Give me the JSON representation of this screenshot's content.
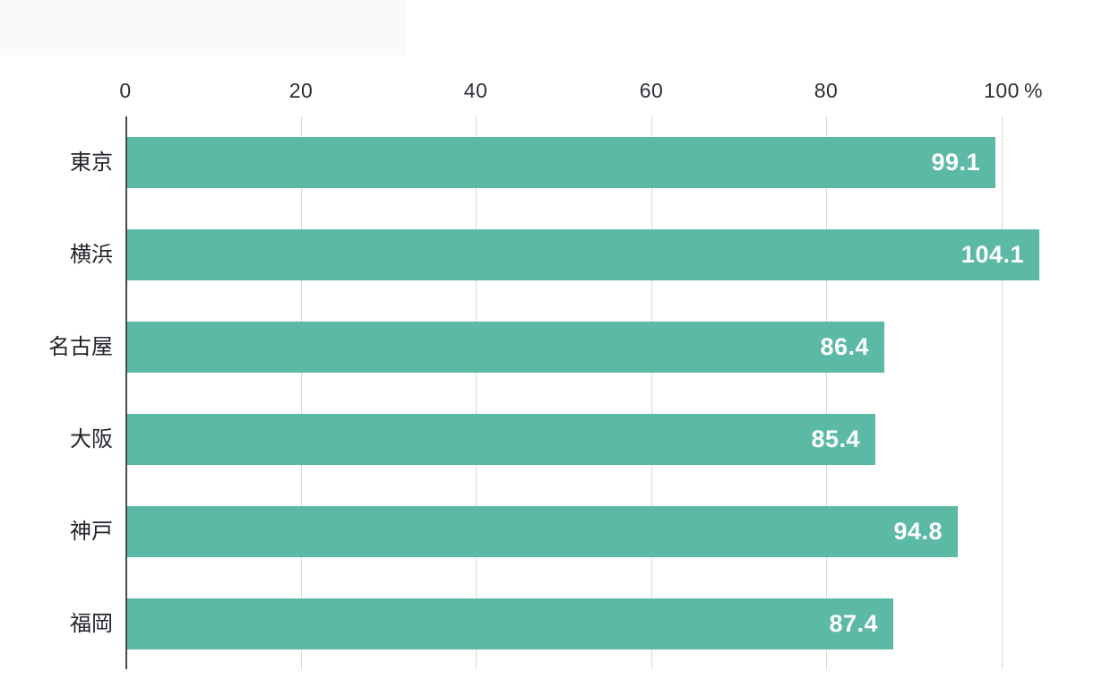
{
  "chart_data": {
    "type": "bar",
    "orientation": "horizontal",
    "title": "",
    "xlabel": "",
    "ylabel": "",
    "unit": "%",
    "categories": [
      "東京",
      "横浜",
      "名古屋",
      "大阪",
      "神戸",
      "福岡"
    ],
    "values": [
      99.1,
      104.1,
      86.4,
      85.4,
      94.8,
      87.4
    ],
    "value_labels": [
      "99.1",
      "104.1",
      "86.4",
      "85.4",
      "94.8",
      "87.4"
    ],
    "ticks": [
      0,
      20,
      40,
      60,
      80,
      100
    ],
    "xlim": [
      0,
      112
    ],
    "grid": true,
    "legend_position": "none",
    "colors": {
      "bar": "#5cb9a5",
      "gridline": "#d9d9d9",
      "axis_line": "#4a4a4a",
      "tick_label": "#2e2e36",
      "category_label": "#23232b",
      "value_label": "#ffffff"
    }
  }
}
